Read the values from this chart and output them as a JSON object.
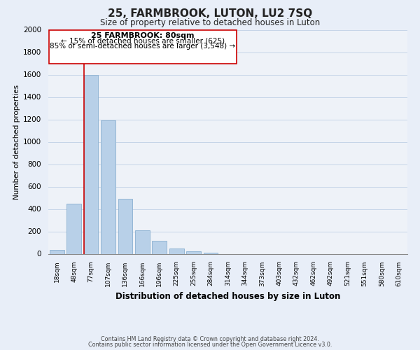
{
  "title": "25, FARMBROOK, LUTON, LU2 7SQ",
  "subtitle": "Size of property relative to detached houses in Luton",
  "xlabel": "Distribution of detached houses by size in Luton",
  "ylabel": "Number of detached properties",
  "bar_color": "#b8d0e8",
  "bar_edge_color": "#8ab0d0",
  "marker_line_color": "#cc0000",
  "bin_labels": [
    "18sqm",
    "48sqm",
    "77sqm",
    "107sqm",
    "136sqm",
    "166sqm",
    "196sqm",
    "225sqm",
    "255sqm",
    "284sqm",
    "314sqm",
    "344sqm",
    "373sqm",
    "403sqm",
    "432sqm",
    "462sqm",
    "492sqm",
    "521sqm",
    "551sqm",
    "580sqm",
    "610sqm"
  ],
  "bar_heights": [
    35,
    450,
    1600,
    1190,
    490,
    210,
    115,
    45,
    20,
    10,
    0,
    0,
    0,
    0,
    0,
    0,
    0,
    0,
    0,
    0,
    0
  ],
  "annotation_title": "25 FARMBROOK: 80sqm",
  "annotation_line1": "← 15% of detached houses are smaller (625)",
  "annotation_line2": "85% of semi-detached houses are larger (3,548) →",
  "ylim": [
    0,
    2000
  ],
  "yticks": [
    0,
    200,
    400,
    600,
    800,
    1000,
    1200,
    1400,
    1600,
    1800,
    2000
  ],
  "footnote1": "Contains HM Land Registry data © Crown copyright and database right 2024.",
  "footnote2": "Contains public sector information licensed under the Open Government Licence v3.0.",
  "background_color": "#e8eef8",
  "plot_bg_color": "#eef2f8",
  "grid_color": "#c5d5e8"
}
